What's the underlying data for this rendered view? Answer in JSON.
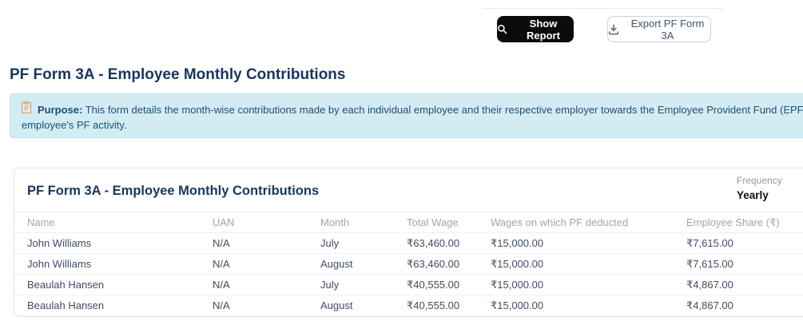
{
  "toolbar": {
    "show_report_label": "Show Report",
    "export_label": "Export PF Form 3A"
  },
  "page": {
    "title": "PF Form 3A - Employee Monthly Contributions"
  },
  "banner": {
    "icon": "clipboard-icon",
    "label": "Purpose:",
    "line1": "This form details the month-wise contributions made by each individual employee and their respective employer towards the Employee Provident Fund (EPF) and Employee Pen",
    "line2": "employee's PF activity."
  },
  "card": {
    "title": "PF Form 3A - Employee Monthly Contributions",
    "frequency_label": "Frequency",
    "frequency_value": "Yearly"
  },
  "table": {
    "columns": [
      "Name",
      "UAN",
      "Month",
      "Total Wage",
      "Wages on which PF deducted",
      "Employee Share (₹)"
    ],
    "rows": [
      [
        "John Williams",
        "N/A",
        "July",
        "₹63,460.00",
        "₹15,000.00",
        "₹7,615.00"
      ],
      [
        "John Williams",
        "N/A",
        "August",
        "₹63,460.00",
        "₹15,000.00",
        "₹7,615.00"
      ],
      [
        "Beaulah Hansen",
        "N/A",
        "July",
        "₹40,555.00",
        "₹15,000.00",
        "₹4,867.00"
      ],
      [
        "Beaulah Hansen",
        "N/A",
        "August",
        "₹40,555.00",
        "₹15,000.00",
        "₹4,867.00"
      ]
    ]
  },
  "colors": {
    "heading": "#1a365d",
    "banner-bg": "#d3ecf3",
    "banner-border": "#bbdfe9",
    "banner-text": "#1d4f73",
    "btn-dark": "#0b0b0c",
    "btn-outline-text": "#44546a",
    "th-text": "#9aa7b4"
  }
}
